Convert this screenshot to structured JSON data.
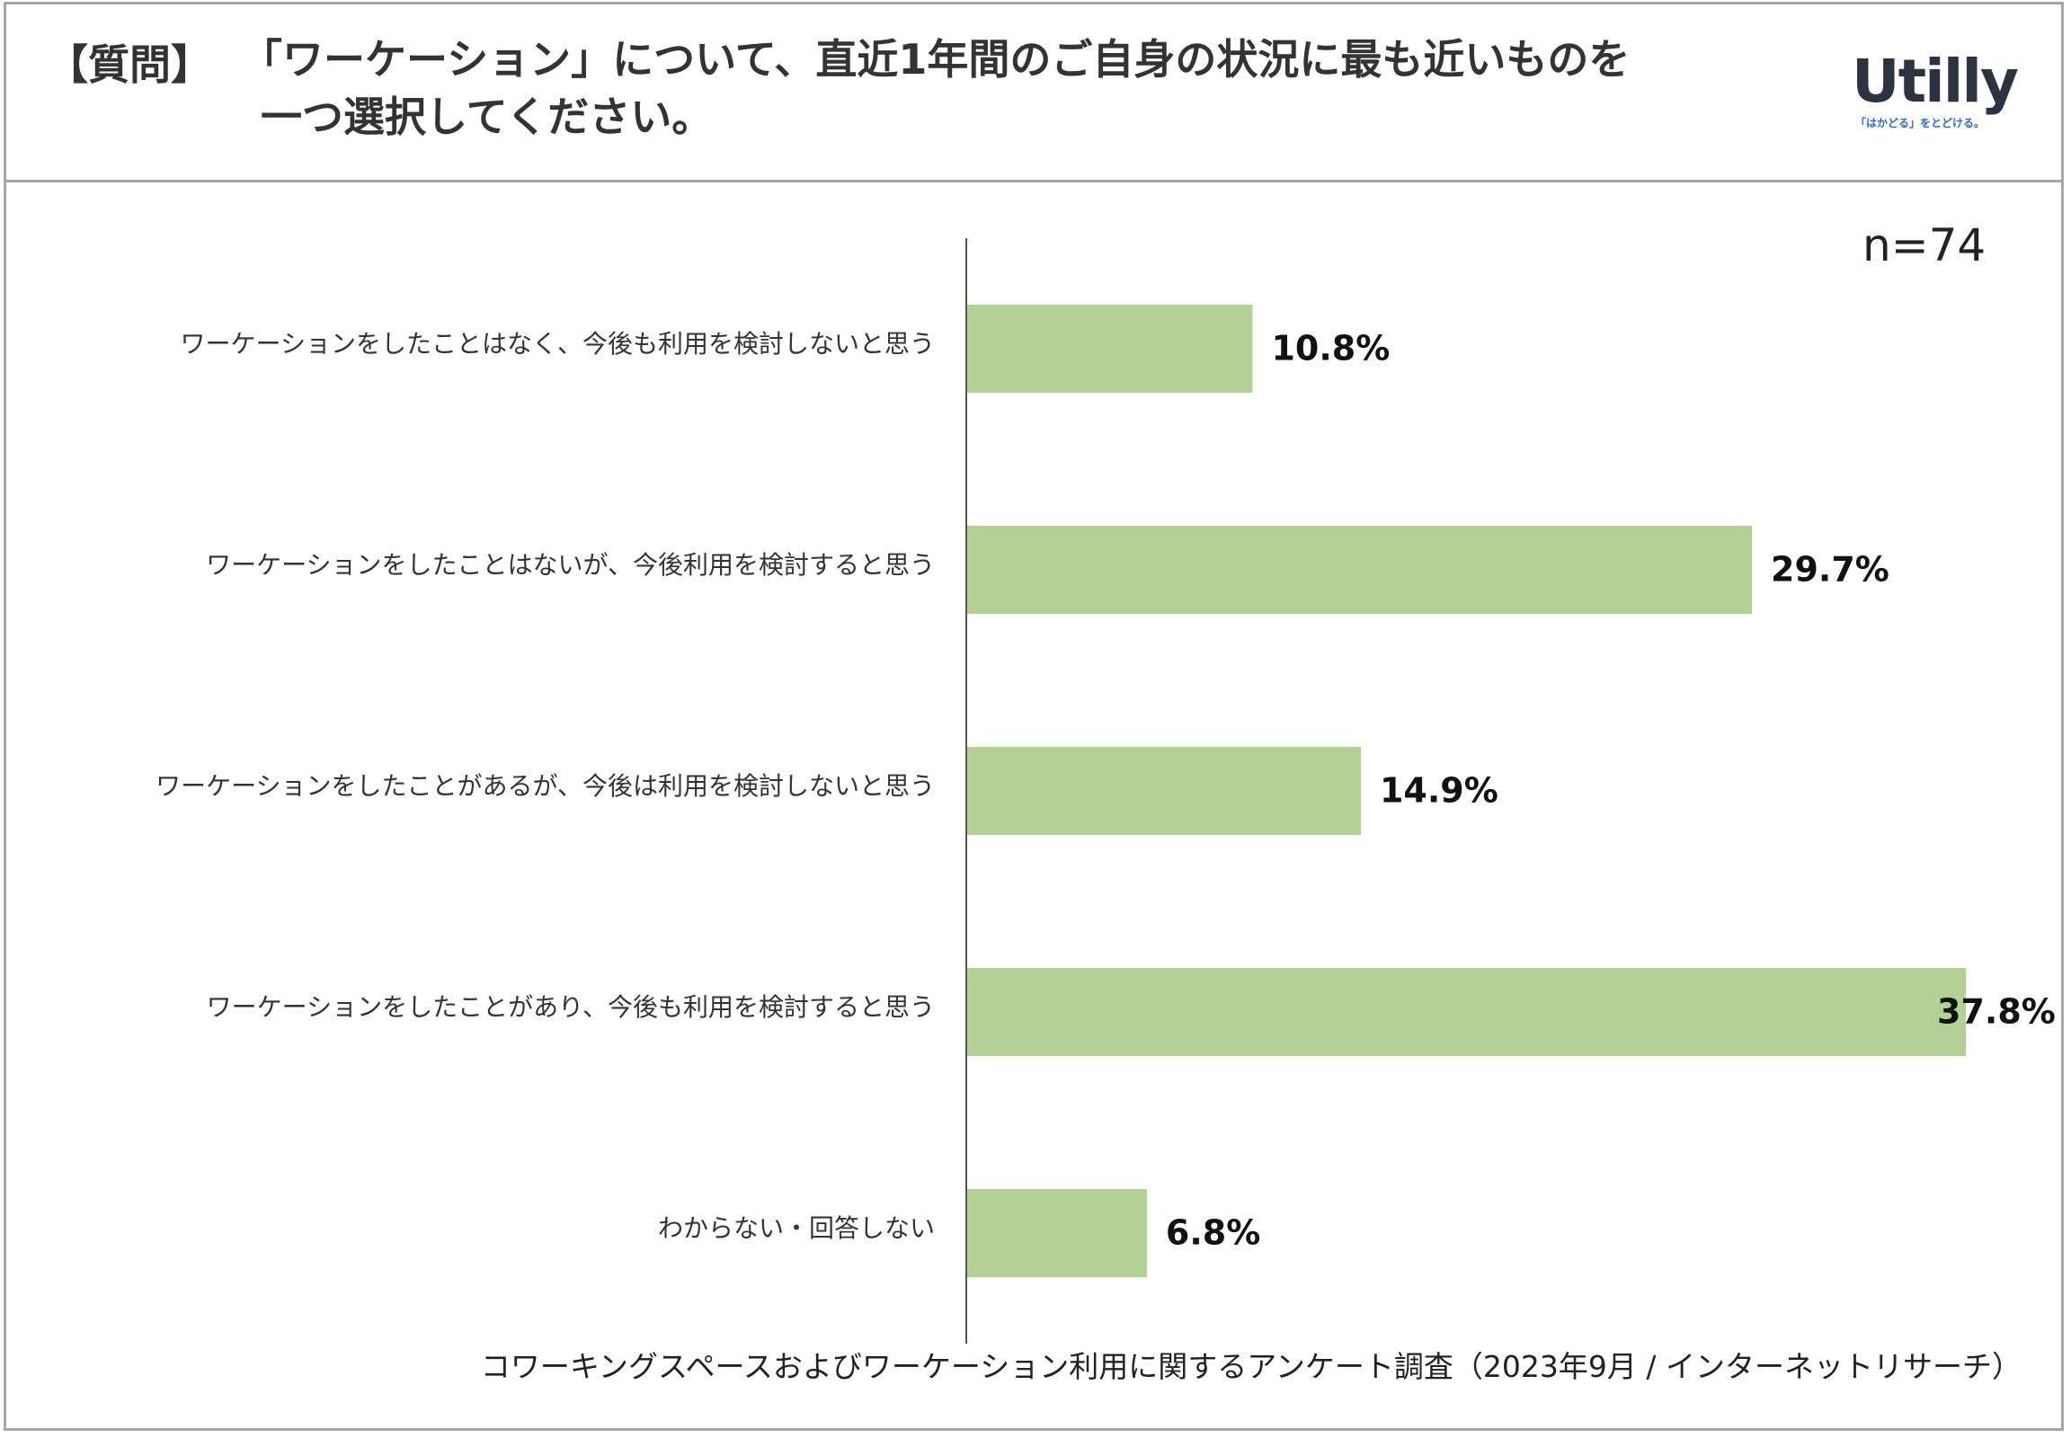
{
  "header": {
    "tag": "【質問】",
    "title_line1": "「ワーケーション」について、直近1年間のご自身の状況に最も近いものを",
    "title_line2": "一つ選択してください。"
  },
  "logo": {
    "name": "Utilly",
    "tagline": "「はかどる」をとどける。"
  },
  "sample_size": "n=74",
  "footer": "コワーキングスペースおよびワーケーション利用に関するアンケート調査（2023年9月 / インターネットリサーチ）",
  "colors": {
    "bar": "#b3d195",
    "axis": "#555555",
    "border": "#a6a6a6"
  },
  "chart_data": {
    "type": "bar",
    "orientation": "horizontal",
    "categories": [
      "ワーケーションをしたことはなく、今後も利用を検討しないと思う",
      "ワーケーションをしたことはないが、今後利用を検討すると思う",
      "ワーケーションをしたことがあるが、今後は利用を検討しないと思う",
      "ワーケーションをしたことがあり、今後も利用を検討すると思う",
      "わからない・回答しない"
    ],
    "values": [
      10.8,
      29.7,
      14.9,
      37.8,
      6.8
    ],
    "value_labels": [
      "10.8%",
      "29.7%",
      "14.9%",
      "37.8%",
      "6.8%"
    ],
    "unit": "%",
    "xlim": [
      0,
      38
    ],
    "grid": false,
    "legend": "none"
  }
}
